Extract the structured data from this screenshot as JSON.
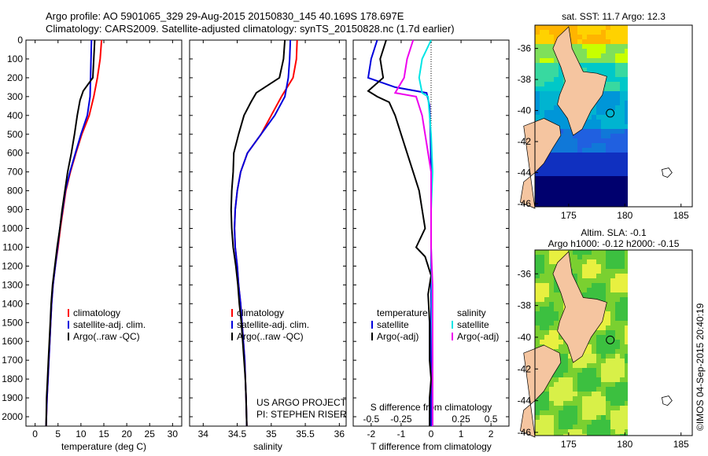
{
  "header": {
    "line1": "Argo profile: AO 5901065_329 29-Aug-2015 20150830_145 40.169S 178.697E",
    "line2": "Climatology: CARS2009. Satellite-adjusted climatology: synTS_20150828.nc (1.7d earlier)"
  },
  "credits": {
    "line1": "US ARGO PROJECT",
    "line2": "PI: STEPHEN RISER"
  },
  "watermark": "©IMOS 04-Sep-2015 20:40:19",
  "colors": {
    "climatology": "#ff0000",
    "satellite": "#0000dd",
    "argo": "#000000",
    "sal_sat": "#00e5e5",
    "sal_argo": "#ee00ee",
    "land": "#f5c5a0",
    "ocean_deep": "#00006e"
  },
  "chart_data": [
    {
      "type": "line",
      "xlabel": "temperature (deg C)",
      "xticks": [
        0,
        5,
        10,
        15,
        20,
        25,
        30
      ],
      "xlim": [
        -2,
        32
      ],
      "ylim": [
        2050,
        0
      ],
      "yticks": [
        0,
        100,
        200,
        300,
        400,
        500,
        600,
        700,
        800,
        900,
        1000,
        1100,
        1200,
        1300,
        1400,
        1500,
        1600,
        1700,
        1800,
        1900,
        2000
      ],
      "legend": [
        "climatology",
        "satellite-adj. clim.",
        "Argo(..raw -QC)"
      ],
      "series": [
        {
          "name": "climatology",
          "color": "#ff0000",
          "points": [
            [
              14.5,
              0
            ],
            [
              14.2,
              100
            ],
            [
              13.6,
              200
            ],
            [
              12.8,
              300
            ],
            [
              11.8,
              400
            ],
            [
              10.2,
              500
            ],
            [
              8.9,
              600
            ],
            [
              7.7,
              700
            ],
            [
              6.7,
              800
            ],
            [
              6.1,
              900
            ],
            [
              5.5,
              1000
            ],
            [
              5.0,
              1100
            ],
            [
              4.4,
              1200
            ],
            [
              3.9,
              1300
            ],
            [
              3.6,
              1400
            ],
            [
              3.4,
              1500
            ],
            [
              3.2,
              1600
            ],
            [
              3.0,
              1700
            ],
            [
              2.8,
              1800
            ],
            [
              2.6,
              1900
            ],
            [
              2.4,
              2050
            ]
          ]
        },
        {
          "name": "satellite-adj. clim.",
          "color": "#0000dd",
          "points": [
            [
              12.3,
              0
            ],
            [
              12.2,
              100
            ],
            [
              12.1,
              200
            ],
            [
              12.0,
              300
            ],
            [
              11.4,
              400
            ],
            [
              10.0,
              500
            ],
            [
              8.8,
              600
            ],
            [
              7.6,
              700
            ],
            [
              6.6,
              800
            ],
            [
              6.0,
              900
            ],
            [
              5.4,
              1000
            ],
            [
              4.9,
              1100
            ],
            [
              4.4,
              1200
            ],
            [
              3.9,
              1300
            ],
            [
              3.6,
              1400
            ],
            [
              3.4,
              1500
            ],
            [
              3.2,
              1600
            ],
            [
              3.0,
              1700
            ],
            [
              2.8,
              1800
            ],
            [
              2.6,
              1900
            ],
            [
              2.4,
              2050
            ]
          ]
        },
        {
          "name": "Argo(..raw -QC)",
          "color": "#000000",
          "points": [
            [
              13.0,
              0
            ],
            [
              12.8,
              100
            ],
            [
              12.6,
              200
            ],
            [
              10.5,
              270
            ],
            [
              9.8,
              320
            ],
            [
              9.2,
              400
            ],
            [
              8.6,
              500
            ],
            [
              7.9,
              600
            ],
            [
              7.1,
              700
            ],
            [
              6.5,
              800
            ],
            [
              5.9,
              900
            ],
            [
              5.4,
              1000
            ],
            [
              4.8,
              1100
            ],
            [
              4.3,
              1200
            ],
            [
              3.8,
              1300
            ],
            [
              3.5,
              1400
            ],
            [
              3.3,
              1500
            ],
            [
              3.1,
              1600
            ],
            [
              2.9,
              1700
            ],
            [
              2.7,
              1800
            ],
            [
              2.5,
              1900
            ],
            [
              2.4,
              2050
            ]
          ]
        }
      ]
    },
    {
      "type": "line",
      "xlabel": "salinity",
      "xticks": [
        34,
        34.5,
        35,
        35.5,
        36
      ],
      "xlim": [
        33.8,
        36.1
      ],
      "ylim": [
        2050,
        0
      ],
      "legend": [
        "climatology",
        "satellite-adj. clim.",
        "Argo(..raw -QC)"
      ],
      "series": [
        {
          "name": "climatology",
          "color": "#ff0000",
          "points": [
            [
              35.38,
              0
            ],
            [
              35.37,
              100
            ],
            [
              35.32,
              200
            ],
            [
              35.15,
              300
            ],
            [
              35.0,
              400
            ],
            [
              34.85,
              500
            ],
            [
              34.65,
              600
            ],
            [
              34.55,
              700
            ],
            [
              34.5,
              800
            ],
            [
              34.47,
              900
            ],
            [
              34.46,
              1000
            ],
            [
              34.47,
              1100
            ],
            [
              34.5,
              1200
            ],
            [
              34.52,
              1300
            ],
            [
              34.55,
              1400
            ],
            [
              34.57,
              1500
            ],
            [
              34.59,
              1600
            ],
            [
              34.61,
              1700
            ],
            [
              34.62,
              1800
            ],
            [
              34.63,
              1900
            ],
            [
              34.64,
              2050
            ]
          ]
        },
        {
          "name": "satellite-adj. clim.",
          "color": "#0000dd",
          "points": [
            [
              35.28,
              0
            ],
            [
              35.27,
              100
            ],
            [
              35.25,
              200
            ],
            [
              35.2,
              300
            ],
            [
              35.05,
              400
            ],
            [
              34.85,
              500
            ],
            [
              34.65,
              600
            ],
            [
              34.55,
              700
            ],
            [
              34.5,
              800
            ],
            [
              34.47,
              900
            ],
            [
              34.46,
              1000
            ],
            [
              34.47,
              1100
            ],
            [
              34.5,
              1200
            ],
            [
              34.52,
              1300
            ],
            [
              34.55,
              1400
            ],
            [
              34.57,
              1500
            ],
            [
              34.59,
              1600
            ],
            [
              34.61,
              1700
            ],
            [
              34.62,
              1800
            ],
            [
              34.63,
              1900
            ],
            [
              34.64,
              2050
            ]
          ]
        },
        {
          "name": "Argo(..raw -QC)",
          "color": "#000000",
          "points": [
            [
              35.2,
              0
            ],
            [
              35.18,
              100
            ],
            [
              35.12,
              200
            ],
            [
              34.78,
              280
            ],
            [
              34.7,
              330
            ],
            [
              34.6,
              400
            ],
            [
              34.52,
              500
            ],
            [
              34.45,
              600
            ],
            [
              34.44,
              700
            ],
            [
              34.42,
              800
            ],
            [
              34.41,
              900
            ],
            [
              34.42,
              1000
            ],
            [
              34.44,
              1100
            ],
            [
              34.48,
              1200
            ],
            [
              34.51,
              1300
            ],
            [
              34.53,
              1400
            ],
            [
              34.56,
              1500
            ],
            [
              34.58,
              1600
            ],
            [
              34.6,
              1700
            ],
            [
              34.62,
              1800
            ],
            [
              34.63,
              1900
            ],
            [
              34.64,
              2050
            ]
          ]
        }
      ]
    },
    {
      "type": "line",
      "xlabel": "T difference from climatology",
      "x2label": "S difference from climatology",
      "xticks": [
        -2,
        -1,
        0,
        1,
        2
      ],
      "xticklabels": [
        "-2",
        "-1",
        "0",
        "1",
        "2"
      ],
      "x2ticks": [
        -0.5,
        -0.25,
        0,
        0.25,
        0.5
      ],
      "x2ticklabels": [
        "-0.5",
        "-0.25",
        "0",
        "0.25",
        "0.5"
      ],
      "xlim": [
        -2.6,
        2.6
      ],
      "ylim": [
        2050,
        0
      ],
      "legend_left": [
        "temperature",
        "satellite",
        "Argo(-adj)"
      ],
      "legend_right": [
        "salinity",
        "satellite",
        "Argo(-adj)"
      ],
      "series": [
        {
          "name": "satellite",
          "color": "#0000dd",
          "points": [
            [
              -1.8,
              0
            ],
            [
              -2.0,
              100
            ],
            [
              -2.1,
              200
            ],
            [
              -1.2,
              250
            ],
            [
              -0.15,
              280
            ],
            [
              -0.05,
              350
            ],
            [
              -0.02,
              500
            ],
            [
              0.0,
              700
            ],
            [
              0.0,
              1000
            ],
            [
              0.0,
              2050
            ]
          ]
        },
        {
          "name": "Argo(-adj)",
          "color": "#000000",
          "points": [
            [
              -1.5,
              0
            ],
            [
              -1.7,
              100
            ],
            [
              -1.6,
              200
            ],
            [
              -2.1,
              270
            ],
            [
              -1.8,
              300
            ],
            [
              -1.4,
              330
            ],
            [
              -1.2,
              400
            ],
            [
              -1.0,
              500
            ],
            [
              -0.8,
              600
            ],
            [
              -0.6,
              700
            ],
            [
              -0.4,
              800
            ],
            [
              -0.3,
              900
            ],
            [
              -0.2,
              1000
            ],
            [
              -0.5,
              1100
            ],
            [
              -0.2,
              1150
            ],
            [
              0.0,
              1250
            ],
            [
              -0.1,
              1350
            ],
            [
              -0.05,
              1500
            ],
            [
              -0.05,
              1700
            ],
            [
              0.0,
              1800
            ],
            [
              -0.05,
              1900
            ],
            [
              -0.05,
              2050
            ]
          ]
        },
        {
          "name": "satellite",
          "color": "#00e5e5",
          "points": [
            [
              0.0,
              0
            ],
            [
              -0.3,
              100
            ],
            [
              -0.4,
              200
            ],
            [
              -0.3,
              280
            ],
            [
              -0.1,
              300
            ],
            [
              0.0,
              500
            ],
            [
              0.05,
              700
            ],
            [
              0.0,
              900
            ],
            [
              0.0,
              1100
            ],
            [
              0.03,
              1300
            ],
            [
              0.03,
              1500
            ],
            [
              0.05,
              1700
            ],
            [
              0.05,
              2050
            ]
          ]
        },
        {
          "name": "Argo(-adj)",
          "color": "#ee00ee",
          "points": [
            [
              -0.6,
              0
            ],
            [
              -0.8,
              100
            ],
            [
              -0.9,
              200
            ],
            [
              -1.2,
              280
            ],
            [
              -0.5,
              300
            ],
            [
              -0.3,
              400
            ],
            [
              -0.2,
              500
            ],
            [
              -0.1,
              600
            ],
            [
              0.0,
              700
            ],
            [
              0.0,
              900
            ],
            [
              0.0,
              1100
            ],
            [
              0.05,
              1300
            ],
            [
              0.05,
              1500
            ],
            [
              0.05,
              1700
            ],
            [
              0.05,
              2050
            ]
          ]
        }
      ]
    },
    {
      "type": "heatmap",
      "title": "sat. SST: 11.7 Argo: 12.3",
      "xticks": [
        175,
        180,
        185
      ],
      "yticks": [
        -36,
        -38,
        -40,
        -42,
        -44,
        -46
      ],
      "xlim": [
        172,
        186
      ],
      "ylim": [
        -46.2,
        -34.5
      ]
    },
    {
      "type": "heatmap",
      "title": "Altim. SLA: -0.1",
      "subtitle": "Argo h1000: -0.12 h2000: -0.15",
      "xticks": [
        175,
        180,
        185
      ],
      "yticks": [
        -36,
        -38,
        -40,
        -42,
        -44,
        -46
      ],
      "xlim": [
        172,
        186
      ],
      "ylim": [
        -46.2,
        -34.5
      ]
    }
  ]
}
